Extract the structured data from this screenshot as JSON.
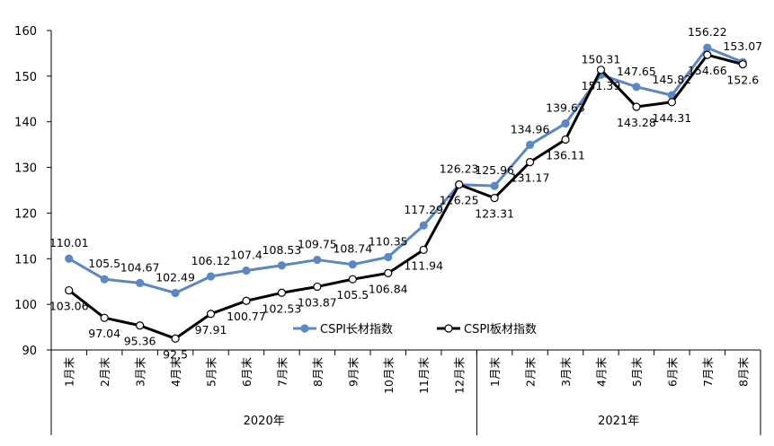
{
  "chart_data": {
    "type": "line",
    "ylim": [
      90,
      160
    ],
    "yticks": [
      90,
      100,
      110,
      120,
      130,
      140,
      150,
      160
    ],
    "categories": [
      "1月末",
      "2月末",
      "3月末",
      "4月末",
      "5月末",
      "6月末",
      "7月末",
      "8月末",
      "9月末",
      "10月末",
      "11月末",
      "12月末",
      "1月末",
      "2月末",
      "3月末",
      "4月末",
      "5月末",
      "6月末",
      "7月末",
      "8月末"
    ],
    "groups": [
      {
        "label": "2020年",
        "count": 12
      },
      {
        "label": "2021年",
        "count": 8
      }
    ],
    "series": [
      {
        "name": "CSPI长材指数",
        "color": "#5b87c5",
        "marker": "filled",
        "values": [
          110.01,
          105.5,
          104.67,
          102.49,
          106.12,
          107.4,
          108.53,
          109.75,
          108.74,
          110.35,
          117.29,
          126.23,
          125.96,
          134.96,
          139.63,
          150.31,
          147.65,
          145.82,
          156.22,
          153.07
        ]
      },
      {
        "name": "CSPI板材指数",
        "color": "#000000",
        "marker": "hollow",
        "values": [
          103.06,
          97.04,
          95.36,
          92.5,
          97.91,
          100.77,
          102.53,
          103.87,
          105.5,
          106.84,
          111.94,
          126.25,
          123.31,
          131.17,
          136.11,
          151.39,
          143.28,
          144.31,
          154.66,
          152.6
        ]
      }
    ],
    "legend": "inside-bottom-center",
    "grid": false
  }
}
